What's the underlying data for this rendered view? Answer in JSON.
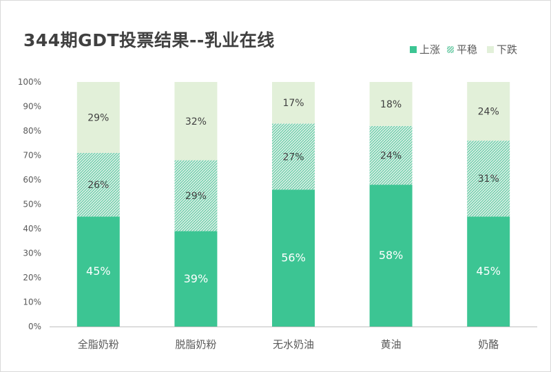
{
  "colors": {
    "up": "#3CC593",
    "flat_hatch": "#3CC593",
    "flat_bg": "#E2F0E8",
    "down": "#E2F0D9"
  },
  "chart_data": {
    "type": "bar",
    "stacked": "percent",
    "title": "344期GDT投票结果--乳业在线",
    "categories": [
      "全脂奶粉",
      "脱脂奶粉",
      "无水奶油",
      "黄油",
      "奶酪"
    ],
    "series": [
      {
        "name": "上涨",
        "values": [
          45,
          39,
          56,
          58,
          45
        ],
        "labels": [
          "45%",
          "39%",
          "56%",
          "58%",
          "45%"
        ]
      },
      {
        "name": "平稳",
        "values": [
          26,
          29,
          27,
          24,
          31
        ],
        "labels": [
          "26%",
          "29%",
          "27%",
          "24%",
          "31%"
        ]
      },
      {
        "name": "下跌",
        "values": [
          29,
          32,
          17,
          18,
          24
        ],
        "labels": [
          "29%",
          "32%",
          "17%",
          "18%",
          "24%"
        ]
      }
    ],
    "ylim": [
      0,
      100
    ],
    "yticks": [
      "0%",
      "10%",
      "20%",
      "30%",
      "40%",
      "50%",
      "60%",
      "70%",
      "80%",
      "90%",
      "100%"
    ],
    "grid": false,
    "legend": "top-right"
  }
}
